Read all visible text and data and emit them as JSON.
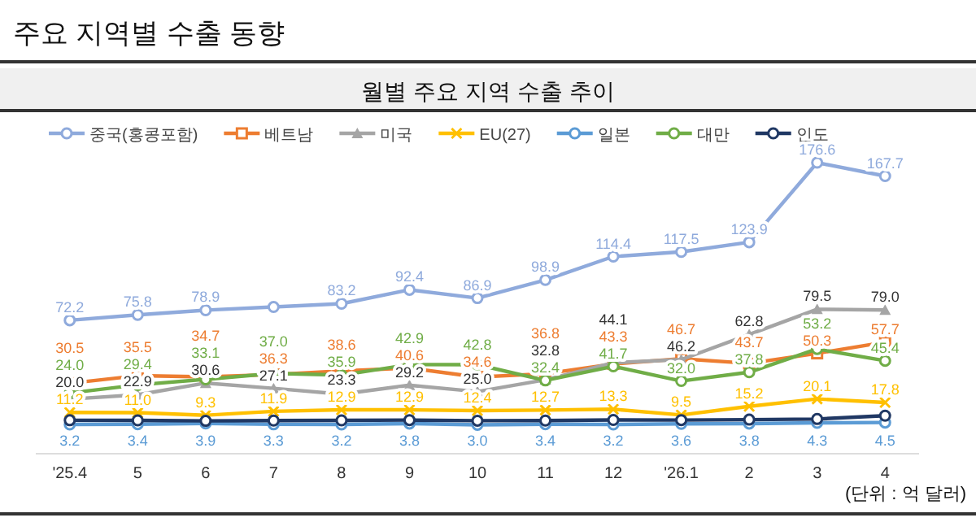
{
  "chart_data": {
    "type": "line",
    "title": "주요 지역별 수출 동향",
    "subtitle": "월별 주요 지역 수출 추이",
    "annotations": [
      "(단위 : 억 달러)"
    ],
    "categories": [
      "'25.4",
      "5",
      "6",
      "7",
      "8",
      "9",
      "10",
      "11",
      "12",
      "'26.1",
      "2",
      "3",
      "4"
    ],
    "legend": "top",
    "grid": false,
    "series": [
      {
        "name": "중국(홍콩포함)",
        "color": "#8faadc",
        "marker": "circle",
        "values": [
          72.2,
          75.8,
          78.9,
          81.0,
          83.2,
          92.4,
          86.9,
          98.9,
          114.4,
          117.5,
          123.9,
          176.6,
          167.7
        ],
        "value_labels": [
          "72.2",
          "75.8",
          "78.9",
          null,
          "83.2",
          "92.4",
          "86.9",
          "98.9",
          "114.4",
          "117.5",
          "123.9",
          "176.6",
          "167.7"
        ]
      },
      {
        "name": "베트남",
        "color": "#ed7d31",
        "marker": "square",
        "values": [
          30.5,
          35.5,
          34.7,
          36.3,
          38.6,
          40.6,
          34.6,
          36.8,
          43.3,
          46.7,
          43.7,
          50.3,
          57.7
        ],
        "value_labels": [
          "30.5",
          "35.5",
          "34.7",
          "36.3",
          "38.6",
          "40.6",
          "34.6",
          "36.8",
          "43.3",
          "46.7",
          "43.7",
          "50.3",
          "57.7"
        ]
      },
      {
        "name": "미국",
        "color": "#a5a5a5",
        "marker": "triangle",
        "values": [
          20.0,
          22.9,
          30.6,
          27.1,
          23.3,
          29.2,
          25.0,
          32.8,
          44.1,
          46.2,
          62.8,
          79.5,
          79.0
        ],
        "value_labels": [
          "20.0",
          "22.9",
          "30.6",
          "27.1",
          "23.3",
          "29.2",
          "25.0",
          "32.8",
          "44.1",
          "46.2",
          "62.8",
          "79.5",
          "79.0"
        ]
      },
      {
        "name": "EU(27)",
        "color": "#ffc000",
        "marker": "cross",
        "values": [
          11.2,
          11.0,
          9.3,
          11.9,
          12.9,
          12.9,
          12.4,
          12.7,
          13.3,
          9.5,
          15.2,
          20.1,
          17.8
        ],
        "value_labels": [
          "11.2",
          "11.0",
          "9.3",
          "11.9",
          "12.9",
          "12.9",
          "12.4",
          "12.7",
          "13.3",
          "9.5",
          "15.2",
          "20.1",
          "17.8"
        ]
      },
      {
        "name": "일본",
        "color": "#5b9bd5",
        "marker": "circle",
        "values": [
          3.2,
          3.4,
          3.9,
          3.3,
          3.2,
          3.8,
          3.0,
          3.4,
          3.2,
          3.6,
          3.8,
          4.3,
          4.5
        ],
        "value_labels": [
          "3.2",
          "3.4",
          "3.9",
          "3.3",
          "3.2",
          "3.8",
          "3.0",
          "3.4",
          "3.2",
          "3.6",
          "3.8",
          "4.3",
          "4.5"
        ]
      },
      {
        "name": "대만",
        "color": "#70ad47",
        "marker": "circle",
        "values": [
          24.0,
          29.4,
          33.1,
          37.0,
          35.9,
          42.9,
          42.8,
          32.4,
          41.7,
          32.0,
          37.8,
          53.2,
          45.4
        ],
        "value_labels": [
          "24.0",
          "29.4",
          "33.1",
          "37.0",
          "35.9",
          "42.9",
          "42.8",
          "32.4",
          "41.7",
          "32.0",
          "37.8",
          "53.2",
          "45.4"
        ]
      },
      {
        "name": "인도",
        "color": "#203864",
        "marker": "circle",
        "values": [
          6.0,
          5.9,
          5.6,
          5.8,
          5.9,
          6.1,
          5.7,
          5.8,
          6.2,
          6.1,
          6.4,
          6.8,
          9.0
        ],
        "value_labels": [
          null,
          null,
          null,
          null,
          null,
          null,
          null,
          null,
          null,
          null,
          null,
          null,
          null
        ]
      }
    ]
  }
}
